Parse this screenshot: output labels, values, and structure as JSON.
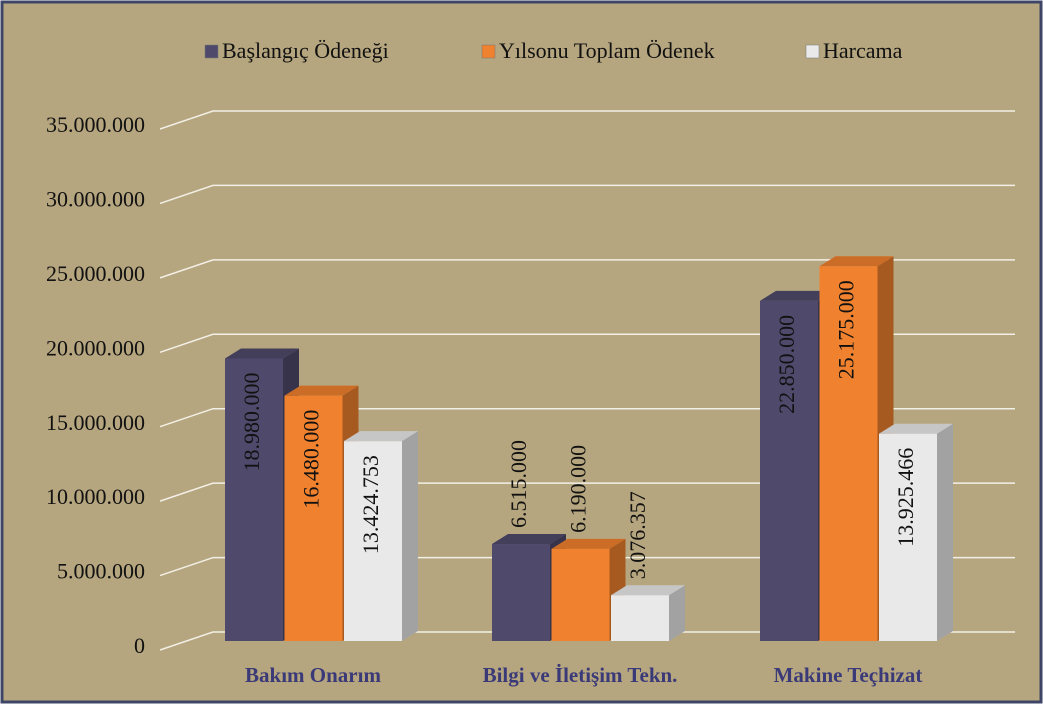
{
  "chart_data": {
    "type": "bar3d",
    "categories": [
      "Bakım Onarım",
      "Bilgi ve İletişim Tekn.",
      "Makine Teçhizat"
    ],
    "series": [
      {
        "name": "Başlangıç Ödeneği",
        "color": "#4f4a6c",
        "values": [
          18980000,
          6515000,
          22850000
        ],
        "value_labels": [
          "18.980.000",
          "6.515.000",
          "22.850.000"
        ]
      },
      {
        "name": "Yılsonu Toplam Ödenek",
        "color": "#f0812e",
        "values": [
          16480000,
          6190000,
          25175000
        ],
        "value_labels": [
          "16.480.000",
          "6.190.000",
          "25.175.000"
        ]
      },
      {
        "name": "Harcama",
        "color": "#e9e9e9",
        "values": [
          13424753,
          3076357,
          13925466
        ],
        "value_labels": [
          "13.424.753",
          "3.076.357",
          "13.925.466"
        ]
      }
    ],
    "ylim": [
      0,
      35000000
    ],
    "yticks": [
      0,
      {
        "value": 5000000,
        "label": "5.000.000"
      },
      {
        "value": 10000000,
        "label": "10.000.000"
      },
      {
        "value": 15000000,
        "label": "15.000.000"
      },
      {
        "value": 20000000,
        "label": "20.000.000"
      },
      {
        "value": 25000000,
        "label": "25.000.000"
      },
      {
        "value": 30000000,
        "label": "30.000.000"
      },
      {
        "value": 35000000,
        "label": "35.000.000"
      }
    ],
    "grid": true,
    "legend": "top"
  }
}
